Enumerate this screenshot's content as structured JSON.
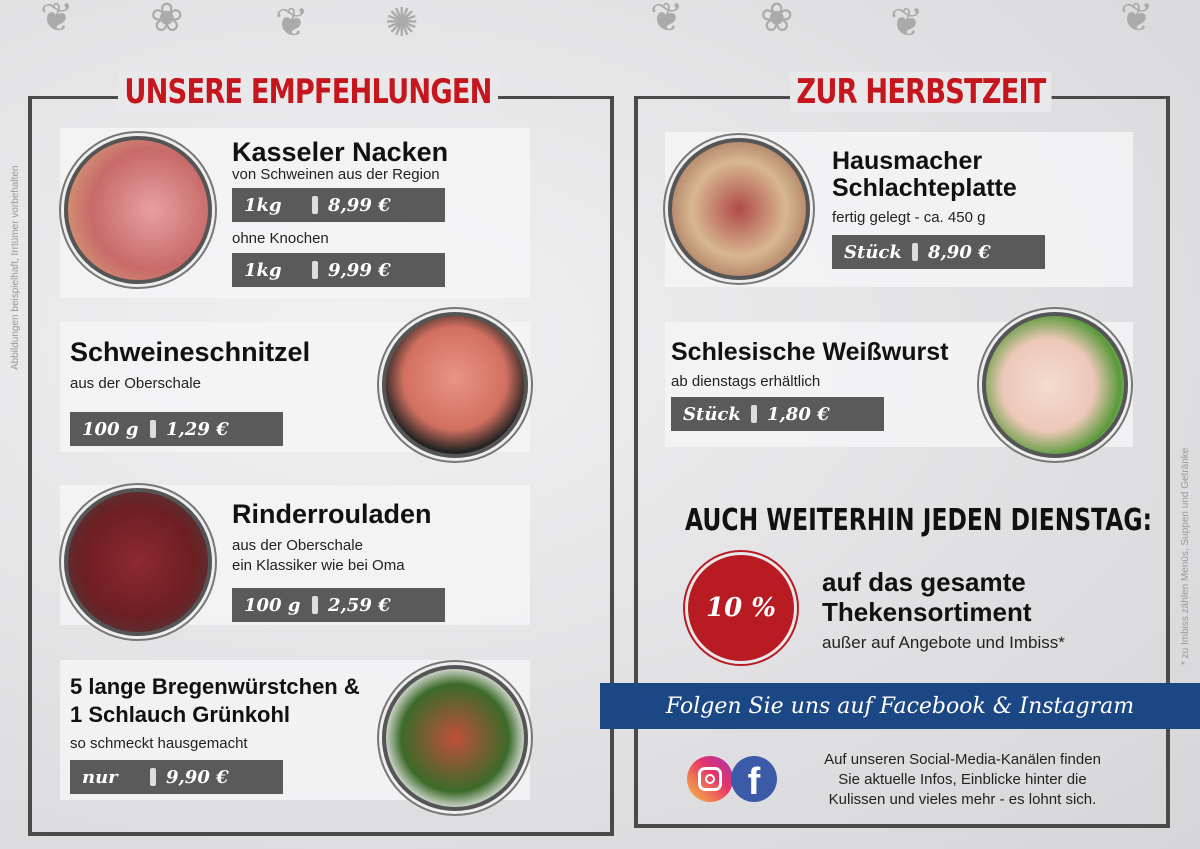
{
  "left": {
    "title": "UNSERE EMPFEHLUNGEN",
    "disclaimer": "Abbildungen beispielhaft, Irrtümer vorbehalten",
    "items": [
      {
        "name": "Kasseler Nacken",
        "desc": "von Schweinen aus der Region",
        "prices": [
          {
            "unit": "1kg",
            "price": "8,99 €"
          },
          {
            "unit": "1kg",
            "price": "9,99 €"
          }
        ],
        "desc2": "ohne Knochen"
      },
      {
        "name": "Schweineschnitzel",
        "desc": "aus der Oberschale",
        "prices": [
          {
            "unit": "100 g",
            "price": "1,29 €"
          }
        ]
      },
      {
        "name": "Rinderrouladen",
        "desc": "aus der Oberschale",
        "desc2": "ein Klassiker wie bei Oma",
        "prices": [
          {
            "unit": "100 g",
            "price": "2,59 €"
          }
        ]
      },
      {
        "name": "5 lange Bregenwürstchen &",
        "name2": "1 Schlauch Grünkohl",
        "desc": "so schmeckt hausgemacht",
        "prices": [
          {
            "unit": "nur",
            "price": "9,90 €"
          }
        ]
      }
    ]
  },
  "right": {
    "title": "ZUR HERBSTZEIT",
    "footnote": "* zu Imbiss zählen Menüs, Suppen und Getränke",
    "items": [
      {
        "name": "Hausmacher",
        "name2": "Schlachteplatte",
        "desc": "fertig gelegt - ca. 450 g",
        "prices": [
          {
            "unit": "Stück",
            "price": "8,90 €"
          }
        ]
      },
      {
        "name": "Schlesische Weißwurst",
        "desc": "ab dienstags erhältlich",
        "prices": [
          {
            "unit": "Stück",
            "price": "1,80 €"
          }
        ]
      }
    ],
    "promo": {
      "headline": "AUCH WEITERHIN JEDEN DIENSTAG:",
      "badge": "10 %",
      "line1": "auf das gesamte",
      "line2": "Thekensortiment",
      "line3": "außer auf Angebote und Imbiss*"
    },
    "social": {
      "banner": "Folgen Sie uns auf Facebook & Instagram",
      "text1": "Auf unseren Social-Media-Kanälen finden",
      "text2": "Sie aktuelle Infos, Einblicke hinter die",
      "text3": "Kulissen und vieles mehr - es lohnt sich."
    }
  },
  "colors": {
    "accent": "#c4161c",
    "banner": "#1c4785",
    "price_bg": "#5a5a5a"
  }
}
